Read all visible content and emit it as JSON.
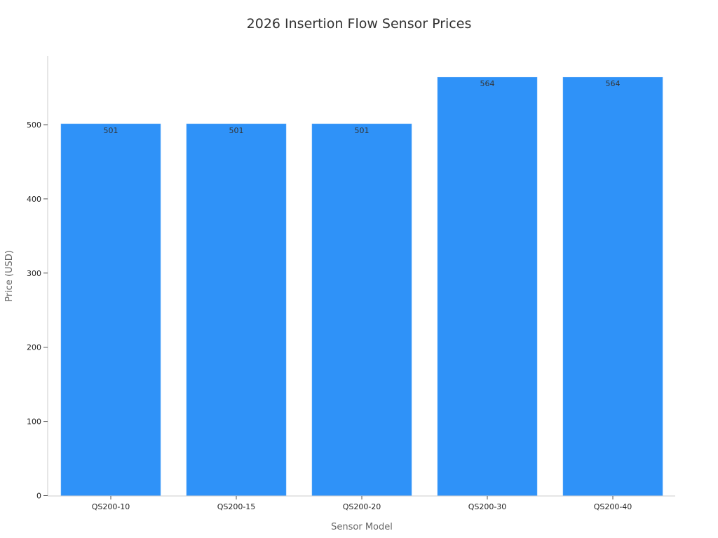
{
  "chart_data": {
    "type": "bar",
    "title": "2026 Insertion Flow Sensor Prices",
    "xlabel": "Sensor Model",
    "ylabel": "Price (USD)",
    "categories": [
      "QS200-10",
      "QS200-15",
      "QS200-20",
      "QS200-30",
      "QS200-40"
    ],
    "values": [
      501,
      501,
      501,
      564,
      564
    ],
    "data_labels": [
      "501",
      "501",
      "501",
      "564",
      "564"
    ],
    "yticks": [
      0,
      100,
      200,
      300,
      400,
      500
    ],
    "ylim": [
      0,
      594
    ],
    "grid": false,
    "legend": "none",
    "bar_color": "#2f92f8",
    "axis_color": "#cccccc"
  }
}
